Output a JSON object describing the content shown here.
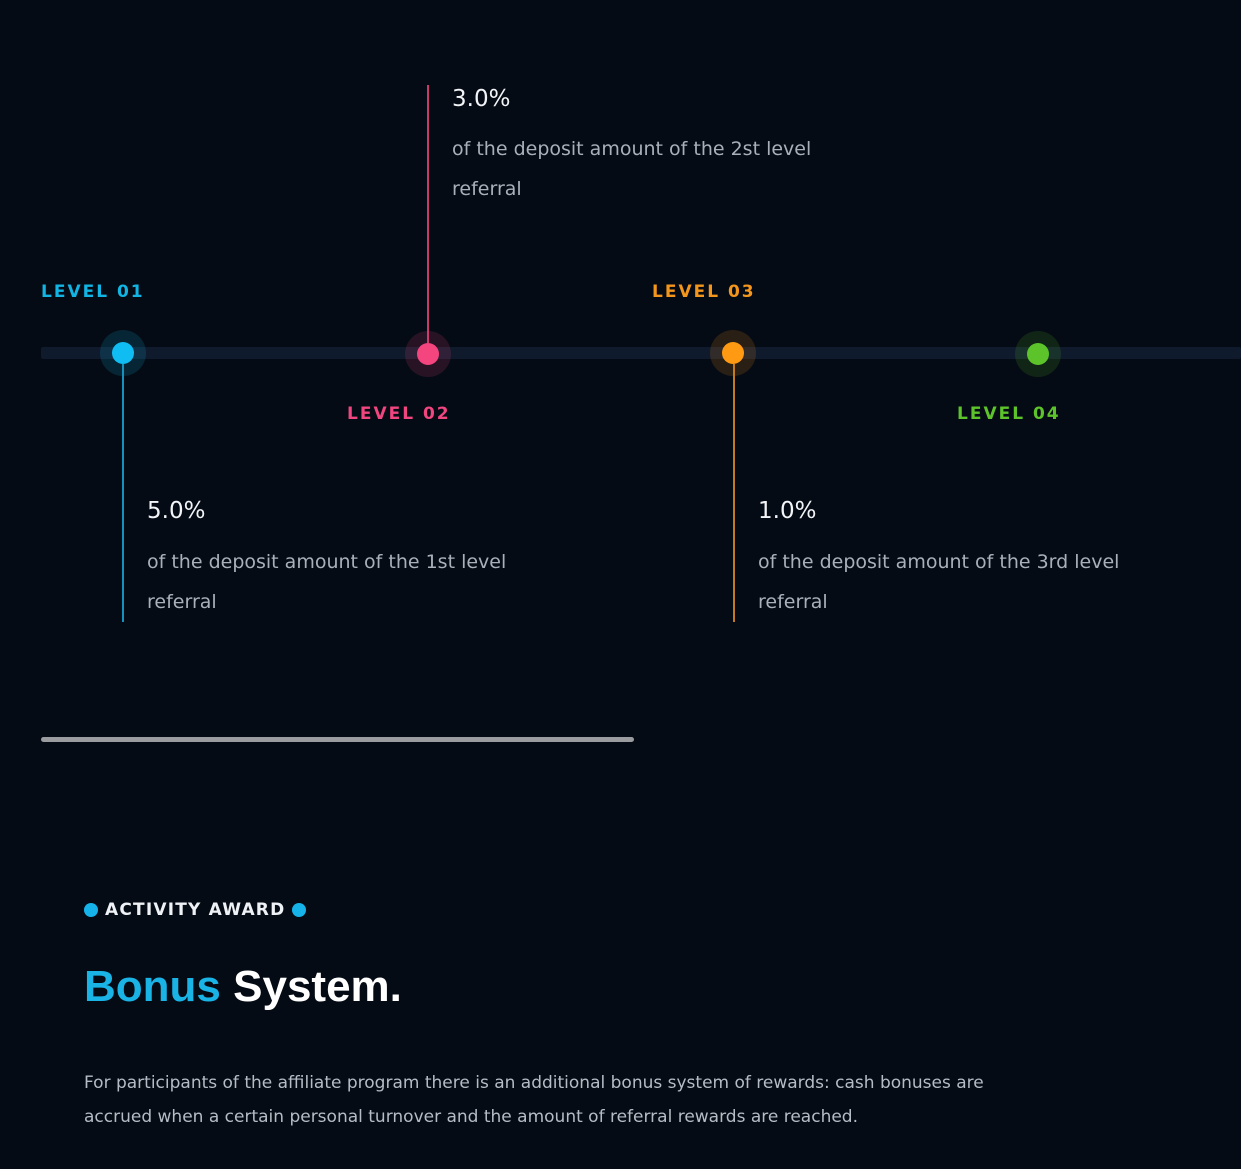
{
  "levels": [
    {
      "title": "LEVEL 01",
      "percent": "5.0%",
      "description": "of the deposit amount of the 1st level referral",
      "color": "#12b4e4"
    },
    {
      "title": "LEVEL 02",
      "percent": "3.0%",
      "description": "of the deposit amount of the 2st level referral",
      "color": "#f0457f"
    },
    {
      "title": "LEVEL 03",
      "percent": "1.0%",
      "description": "of the deposit amount of the 3rd level referral",
      "color": "#f5961c"
    },
    {
      "title": "LEVEL 04",
      "color": "#5cc42a"
    }
  ],
  "bonus": {
    "eyebrow": "ACTIVITY AWARD",
    "headline_accent": "Bonus",
    "headline_rest": "System.",
    "body": "For participants of the affiliate program there is an additional bonus system of rewards: cash bonuses are accrued when a certain personal turnover and the amount of referral rewards are reached."
  },
  "colors": {
    "background": "#050b14",
    "accent": "#19b3e6"
  }
}
